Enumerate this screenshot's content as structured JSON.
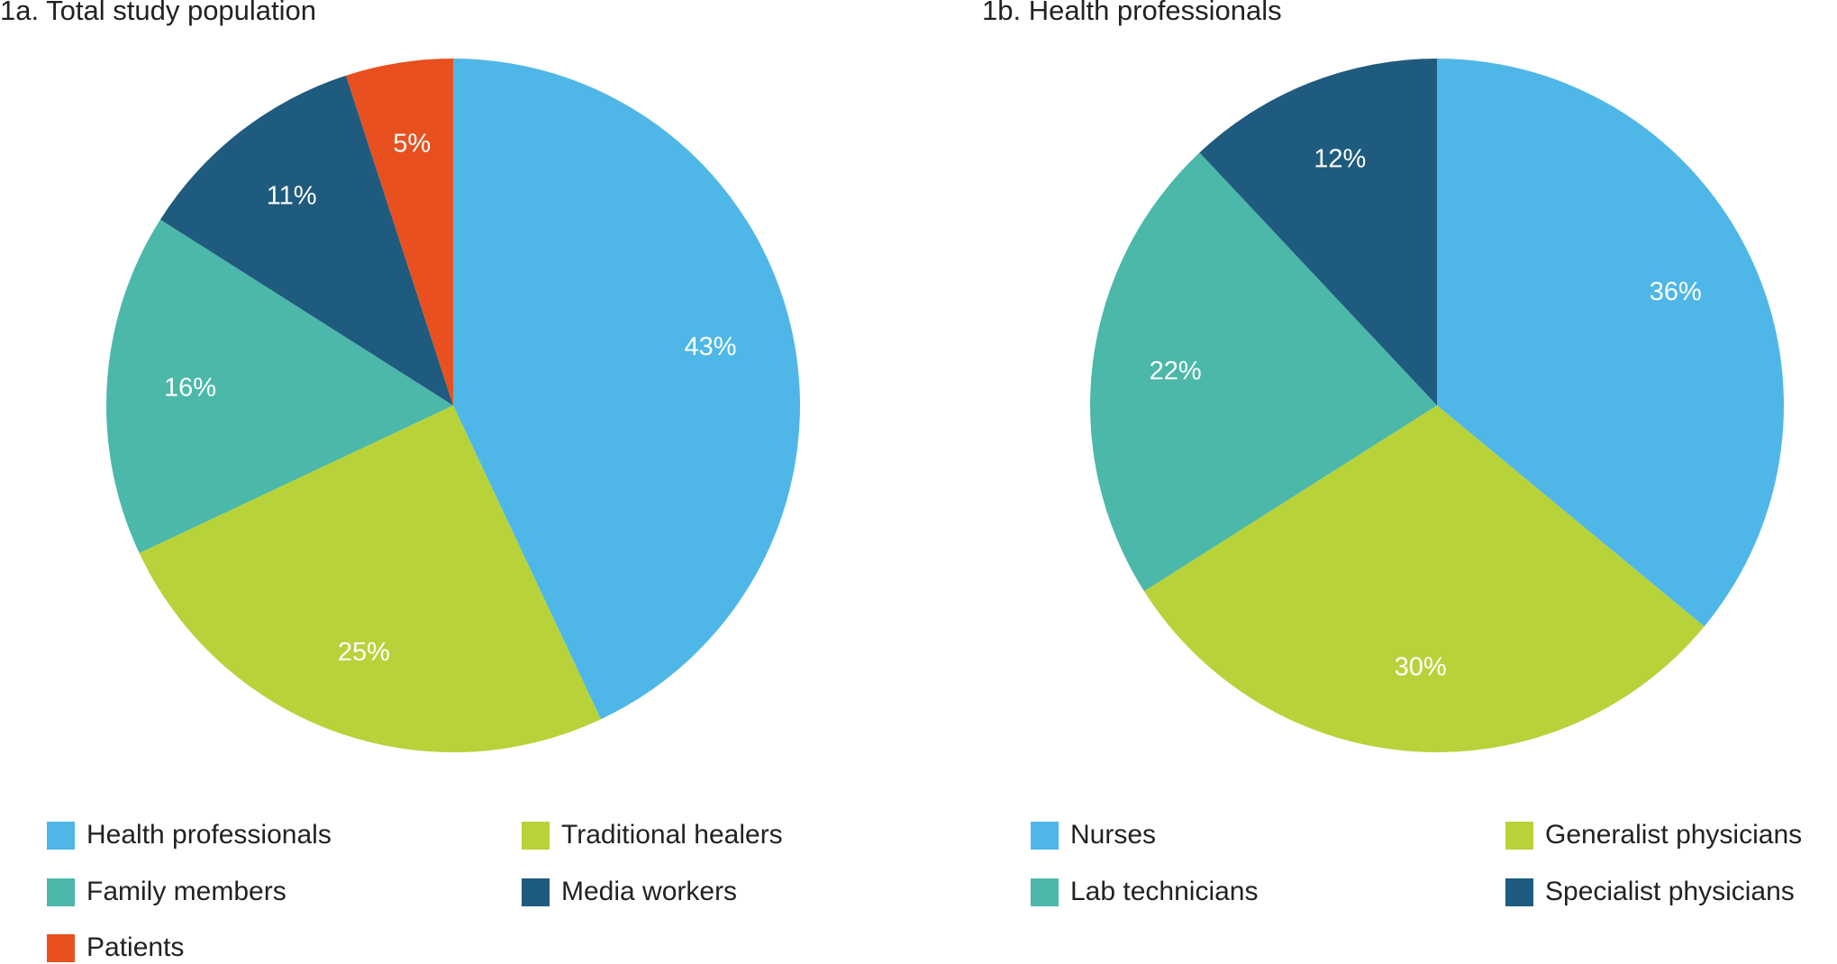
{
  "chart_data": [
    {
      "type": "pie",
      "title": "1a. Total study population",
      "categories": [
        "Health professionals",
        "Traditional healers",
        "Family members",
        "Media workers",
        "Patients"
      ],
      "values": [
        43,
        25,
        16,
        11,
        5
      ],
      "value_labels": [
        "43%",
        "25%",
        "16%",
        "11%",
        "5%"
      ],
      "colors": [
        "#4fb7e8",
        "#b8d23a",
        "#4bb8a9",
        "#1f5b7e",
        "#e8501f"
      ]
    },
    {
      "type": "pie",
      "title": "1b. Health professionals",
      "categories": [
        "Nurses",
        "Generalist physicians",
        "Lab technicians",
        "Specialist physicians"
      ],
      "values": [
        36,
        30,
        22,
        12
      ],
      "value_labels": [
        "36%",
        "30%",
        "22%",
        "12%"
      ],
      "colors": [
        "#4fb7e8",
        "#b8d23a",
        "#4bb8a9",
        "#1f5b7e"
      ]
    }
  ]
}
